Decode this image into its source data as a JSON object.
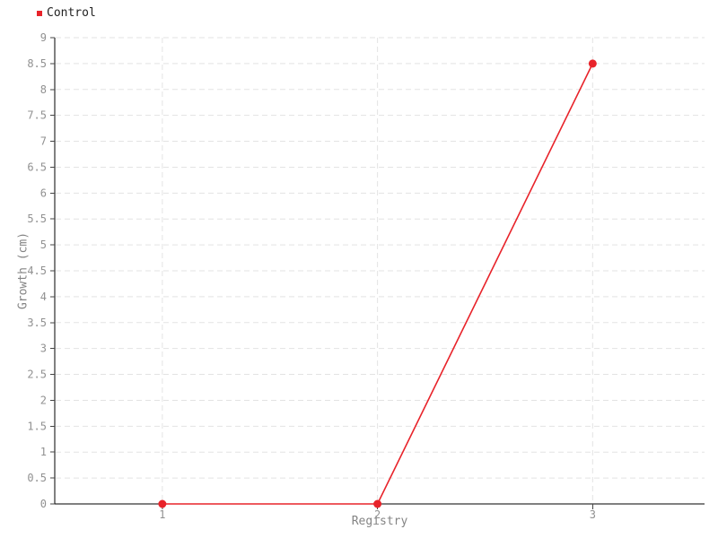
{
  "legend": {
    "items": [
      {
        "label": "Control",
        "color": "#e8232a"
      }
    ],
    "position": "top-left"
  },
  "chart_data": {
    "type": "line",
    "title": "",
    "xlabel": "Registry",
    "ylabel": "Growth (cm)",
    "series": [
      {
        "name": "Control",
        "color": "#e8232a",
        "x": [
          1,
          2,
          3
        ],
        "y": [
          0,
          0,
          8.5
        ],
        "marker": "circle",
        "marker_radius": 4.5,
        "line_width": 1.6
      }
    ],
    "xlim": [
      0.5,
      3.52
    ],
    "ylim": [
      0,
      9
    ],
    "xticks": [
      1,
      2,
      3
    ],
    "yticks": [
      0,
      0.5,
      1,
      1.5,
      2,
      2.5,
      3,
      3.5,
      4,
      4.5,
      5,
      5.5,
      6,
      6.5,
      7,
      7.5,
      8,
      8.5,
      9
    ],
    "grid": true,
    "gridline_style": "dashed",
    "legend_position": "top-left"
  },
  "colors": {
    "series_red": "#e8232a",
    "gridline": "#e3e3e3",
    "axis_line": "#000000",
    "tick_mark": "#444444",
    "tick_label": "#919191",
    "axis_title": "#848484",
    "legend_text": "#222222",
    "background": "#ffffff"
  }
}
